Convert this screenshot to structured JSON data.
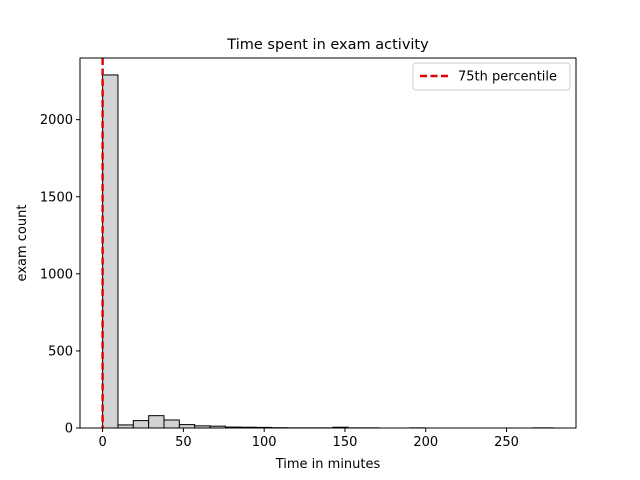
{
  "chart_data": {
    "type": "bar",
    "title": "Time spent in exam activity",
    "xlabel": "Time in minutes",
    "ylabel": "exam count",
    "xlim": [
      -14,
      293
    ],
    "ylim": [
      0,
      2400
    ],
    "xticks": [
      0,
      50,
      100,
      150,
      200,
      250
    ],
    "yticks": [
      0,
      500,
      1000,
      1500,
      2000
    ],
    "bins": [
      {
        "x0": 0,
        "x1": 9.5,
        "count": 2290
      },
      {
        "x0": 9.5,
        "x1": 19,
        "count": 20
      },
      {
        "x0": 19,
        "x1": 28.5,
        "count": 48
      },
      {
        "x0": 28.5,
        "x1": 38,
        "count": 80
      },
      {
        "x0": 38,
        "x1": 47.5,
        "count": 52
      },
      {
        "x0": 47.5,
        "x1": 57,
        "count": 22
      },
      {
        "x0": 57,
        "x1": 66.5,
        "count": 14
      },
      {
        "x0": 66.5,
        "x1": 76,
        "count": 12
      },
      {
        "x0": 76,
        "x1": 85.5,
        "count": 6
      },
      {
        "x0": 85.5,
        "x1": 95,
        "count": 5
      },
      {
        "x0": 95,
        "x1": 104.5,
        "count": 4
      },
      {
        "x0": 104.5,
        "x1": 114,
        "count": 2
      },
      {
        "x0": 114,
        "x1": 123.5,
        "count": 1
      },
      {
        "x0": 123.5,
        "x1": 133,
        "count": 1
      },
      {
        "x0": 133,
        "x1": 142.5,
        "count": 1
      },
      {
        "x0": 142.5,
        "x1": 152,
        "count": 5
      },
      {
        "x0": 152,
        "x1": 161.5,
        "count": 1
      },
      {
        "x0": 161.5,
        "x1": 171,
        "count": 1
      },
      {
        "x0": 171,
        "x1": 180.5,
        "count": 0
      },
      {
        "x0": 180.5,
        "x1": 190,
        "count": 0
      },
      {
        "x0": 190,
        "x1": 199.5,
        "count": 1
      },
      {
        "x0": 199.5,
        "x1": 209,
        "count": 0
      },
      {
        "x0": 209,
        "x1": 218.5,
        "count": 0
      },
      {
        "x0": 218.5,
        "x1": 228,
        "count": 0
      },
      {
        "x0": 228,
        "x1": 237.5,
        "count": 0
      },
      {
        "x0": 237.5,
        "x1": 247,
        "count": 0
      },
      {
        "x0": 247,
        "x1": 256.5,
        "count": 0
      },
      {
        "x0": 256.5,
        "x1": 266,
        "count": 0
      },
      {
        "x0": 266,
        "x1": 279,
        "count": 1
      }
    ],
    "bar_fill": "#d3d3d3",
    "bar_edge": "#000000",
    "percentile_line": {
      "name": "75th percentile",
      "x": 0,
      "color": "#e00000"
    },
    "legend_position": "top-right",
    "grid": false
  }
}
